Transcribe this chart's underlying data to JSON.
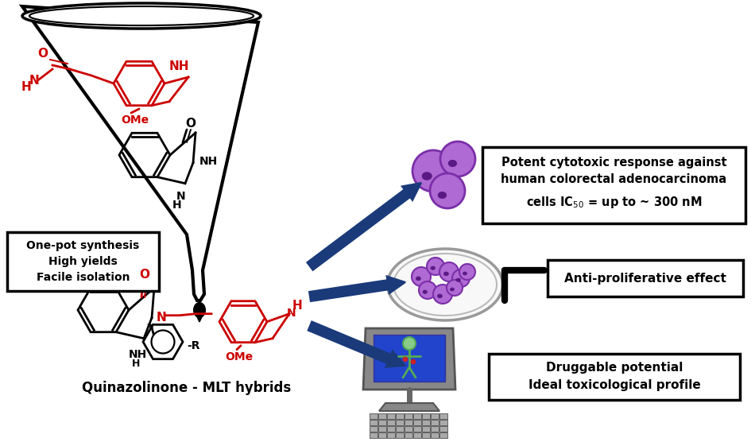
{
  "bg_color": "#ffffff",
  "red_color": "#cc0000",
  "black_color": "#000000",
  "arrow_fill": "#1a3a7a",
  "arrow_edge": "#1a3a7a",
  "cell_face": "#b06ad4",
  "cell_edge": "#7b2fa8",
  "cell_dot": "#5a1a85",
  "text_box1_lines": [
    "One-pot synthesis",
    "High yields",
    "Facile isolation"
  ],
  "text_box2_line1": "Potent cytotoxic response against",
  "text_box2_line2": "human colorectal adenocarcinoma",
  "text_box2_line3": "cells IC$_{50}$ = up to ~ 300 nM",
  "text_box3": "Anti-proliferative effect",
  "text_box4_lines": [
    "Druggable potential",
    "Ideal toxicological profile"
  ],
  "label_hybrid": "Quinazolinone - MLT hybrids",
  "figsize": [
    9.5,
    5.56
  ],
  "dpi": 100
}
